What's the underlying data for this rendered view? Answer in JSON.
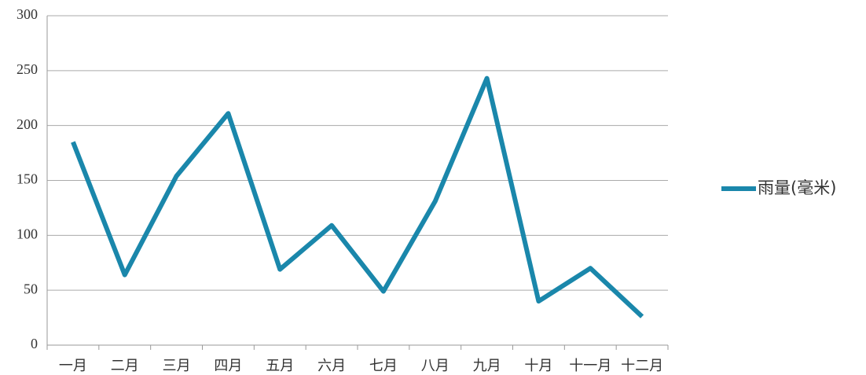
{
  "chart_data": {
    "type": "line",
    "categories": [
      "一月",
      "二月",
      "三月",
      "四月",
      "五月",
      "六月",
      "七月",
      "八月",
      "九月",
      "十月",
      "十一月",
      "十二月"
    ],
    "series": [
      {
        "name": "雨量(毫米)",
        "color": "#1a87ab",
        "values": [
          185,
          64,
          154,
          211,
          69,
          109,
          49,
          131,
          243,
          40,
          70,
          26
        ]
      }
    ],
    "ylim": [
      0,
      300
    ],
    "yticks": [
      0,
      50,
      100,
      150,
      200,
      250,
      300
    ],
    "grid": true,
    "legend": "right"
  }
}
